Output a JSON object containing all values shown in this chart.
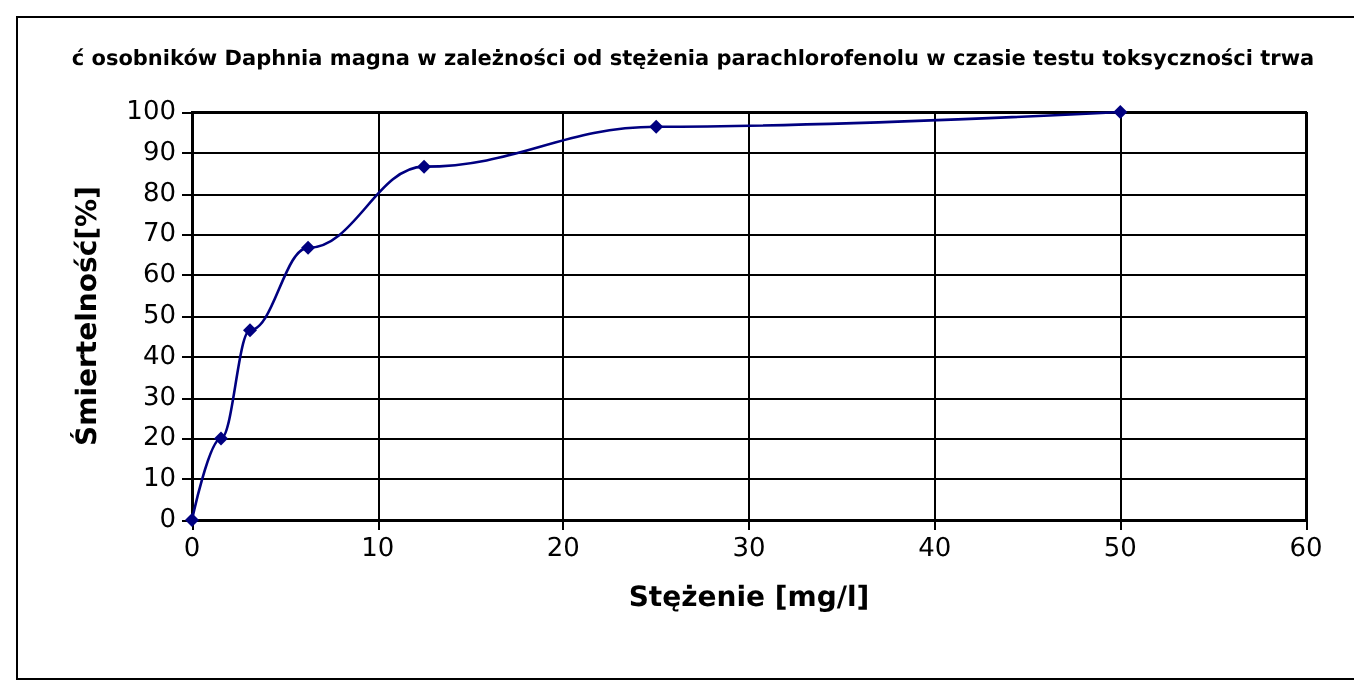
{
  "chart_data": {
    "type": "line",
    "title": "ć osobników Daphnia magna w zależności od stężenia parachlorofenolu w czasie testu toksyczności trwa",
    "xlabel": "Stężenie [mg/l]",
    "ylabel": "Śmiertelność[%]",
    "x": [
      0,
      1.5625,
      3.125,
      6.25,
      12.5,
      25,
      50
    ],
    "series": [
      {
        "color": "#000080",
        "values": [
          0,
          20,
          46.5,
          66.7,
          86.6,
          96.4,
          100
        ]
      }
    ],
    "xlim": [
      0,
      60
    ],
    "xticks": [
      0,
      10,
      20,
      30,
      40,
      50,
      60
    ],
    "ylim": [
      0,
      100
    ],
    "yticks": [
      0,
      10,
      20,
      30,
      40,
      50,
      60,
      70,
      80,
      90,
      100
    ],
    "grid": true,
    "marker": "diamond",
    "line_style": "solid"
  }
}
